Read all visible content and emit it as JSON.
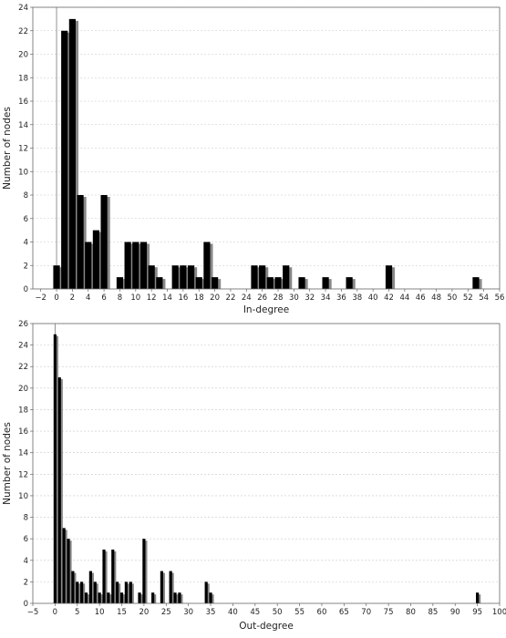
{
  "chart_data": [
    {
      "type": "bar",
      "xlabel": "In-degree",
      "ylabel": "Number of nodes",
      "xlim": [
        -3,
        56
      ],
      "ylim": [
        0,
        24
      ],
      "x_ticks": [
        -2,
        0,
        2,
        4,
        6,
        8,
        10,
        12,
        14,
        16,
        18,
        20,
        22,
        24,
        26,
        28,
        30,
        32,
        34,
        36,
        38,
        40,
        42,
        44,
        46,
        48,
        50,
        52,
        54,
        56
      ],
      "y_ticks": [
        0,
        2,
        4,
        6,
        8,
        10,
        12,
        14,
        16,
        18,
        20,
        22,
        24
      ],
      "grid": true,
      "bar_color": "#000000",
      "shadow_color": "#888888",
      "x": [
        0,
        1,
        2,
        3,
        4,
        5,
        6,
        8,
        9,
        10,
        11,
        12,
        13,
        15,
        16,
        17,
        18,
        19,
        20,
        25,
        26,
        27,
        28,
        29,
        31,
        34,
        37,
        42,
        53
      ],
      "values": [
        2,
        22,
        23,
        8,
        4,
        5,
        8,
        1,
        4,
        4,
        4,
        2,
        1,
        2,
        2,
        2,
        1,
        4,
        1,
        2,
        2,
        1,
        1,
        2,
        1,
        1,
        1,
        2,
        1
      ]
    },
    {
      "type": "bar",
      "xlabel": "Out-degree",
      "ylabel": "Number of nodes",
      "xlim": [
        -5,
        100
      ],
      "ylim": [
        0,
        26
      ],
      "x_ticks": [
        -5,
        0,
        5,
        10,
        15,
        20,
        25,
        30,
        35,
        40,
        45,
        50,
        55,
        60,
        65,
        70,
        75,
        80,
        85,
        90,
        95,
        100
      ],
      "y_ticks": [
        0,
        2,
        4,
        6,
        8,
        10,
        12,
        14,
        16,
        18,
        20,
        22,
        24,
        26
      ],
      "grid": true,
      "bar_color": "#000000",
      "shadow_color": "#888888",
      "x": [
        0,
        1,
        2,
        3,
        4,
        5,
        6,
        7,
        8,
        9,
        10,
        11,
        12,
        13,
        14,
        15,
        16,
        17,
        19,
        20,
        22,
        24,
        26,
        27,
        28,
        34,
        35,
        95
      ],
      "values": [
        25,
        21,
        7,
        6,
        3,
        2,
        2,
        1,
        3,
        2,
        1,
        5,
        1,
        5,
        2,
        1,
        2,
        2,
        1,
        6,
        1,
        3,
        3,
        1,
        1,
        2,
        1,
        1
      ]
    }
  ]
}
